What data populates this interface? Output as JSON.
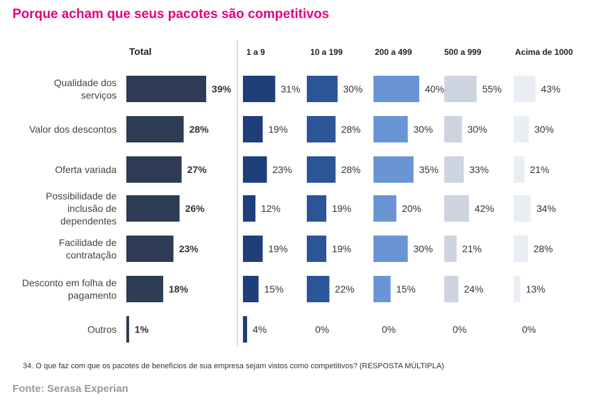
{
  "title": "Porque acham que seus pacotes são competitivos",
  "footnote": "34. O que faz com que os pacotes de benefícios de sua empresa sejam vistos como competitivos? (RESPOSTA MÚLTIPLA)",
  "source": "Fonte: Serasa Experian",
  "chart_data": {
    "type": "bar",
    "orientation": "horizontal",
    "categories": [
      "Qualidade dos serviços",
      "Valor dos descontos",
      "Oferta variada",
      "Possibilidade de inclusão de dependentes",
      "Facilidade de contratação",
      "Desconto em folha de pagamento",
      "Outros"
    ],
    "series": [
      {
        "name": "Total",
        "color": "#2e3c55",
        "bold": true,
        "values": [
          39,
          28,
          27,
          26,
          23,
          18,
          1
        ]
      },
      {
        "name": "1 a 9",
        "color": "#1f3f7a",
        "values": [
          31,
          19,
          23,
          12,
          19,
          15,
          4
        ]
      },
      {
        "name": "10 a 199",
        "color": "#2b5597",
        "values": [
          30,
          28,
          28,
          19,
          19,
          22,
          0
        ]
      },
      {
        "name": "200 a 499",
        "color": "#6995d5",
        "values": [
          40,
          30,
          35,
          20,
          30,
          15,
          0
        ]
      },
      {
        "name": "500 a 999",
        "color": "#cdd4df",
        "values": [
          55,
          30,
          33,
          42,
          21,
          24,
          0
        ]
      },
      {
        "name": "Acima de 1000",
        "color": "#eaedf3",
        "values": [
          43,
          30,
          21,
          34,
          28,
          13,
          0
        ]
      }
    ],
    "value_suffix": "%"
  }
}
